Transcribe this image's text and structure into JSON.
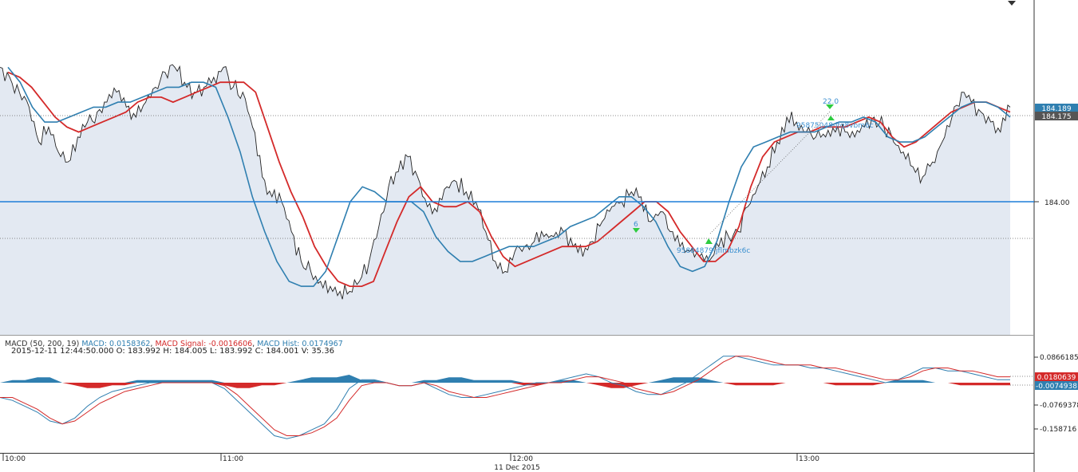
{
  "chart_data": [
    {
      "type": "line",
      "panel": "price",
      "x_labels": [
        "10:00",
        "11:00",
        "12:00",
        "13:00"
      ],
      "date_label": "11 Dec 2015",
      "y_ticks": [
        "184.00"
      ],
      "price_tags": [
        {
          "value": "184.189",
          "color": "#2f7fb0"
        },
        {
          "value": "184.175",
          "color": "#555555"
        }
      ],
      "horizontal_level": 184.0,
      "annotations": [
        {
          "text": "22.0"
        },
        {
          "text": "95875048-jfq8vbm6c"
        },
        {
          "text": "6"
        },
        {
          "text": "95884879-jflmbzk6c"
        }
      ],
      "series": [
        {
          "color": "#222222",
          "values": [
            184.27,
            184.25,
            184.22,
            184.19,
            184.12,
            184.15,
            184.1,
            184.08,
            184.13,
            184.16,
            184.18,
            184.2,
            184.22,
            184.19,
            184.17,
            184.2,
            184.23,
            184.26,
            184.27,
            184.24,
            184.22,
            184.23,
            184.25,
            184.27,
            184.23,
            184.22,
            184.15,
            184.05,
            184.01,
            184.0,
            183.94,
            183.88,
            183.86,
            183.84,
            183.83,
            183.82,
            183.82,
            183.84,
            183.88,
            183.95,
            184.03,
            184.06,
            184.09,
            184.05,
            183.99,
            183.98,
            184.03,
            184.04,
            184.02,
            184.0,
            183.94,
            183.88,
            183.86,
            183.9,
            183.91,
            183.92,
            183.93,
            183.93,
            183.94,
            183.91,
            183.89,
            183.92,
            183.96,
            183.99,
            184.0,
            184.02,
            184.01,
            183.96,
            183.98,
            183.94,
            183.91,
            183.9,
            183.89,
            183.88,
            183.91,
            183.93,
            183.94,
            183.99,
            184.03,
            184.07,
            184.12,
            184.17,
            184.16,
            184.14,
            184.13,
            184.13,
            184.14,
            184.14,
            184.13,
            184.15,
            184.17,
            184.15,
            184.12,
            184.1,
            184.07,
            184.05,
            184.08,
            184.12,
            184.17,
            184.22,
            184.2,
            184.18,
            184.16,
            184.14,
            184.19
          ]
        },
        {
          "name": "",
          "color": "#d42a2a",
          "values": [
            184.26,
            184.25,
            184.23,
            184.2,
            184.17,
            184.15,
            184.14,
            184.15,
            184.16,
            184.17,
            184.18,
            184.2,
            184.21,
            184.21,
            184.2,
            184.21,
            184.22,
            184.23,
            184.24,
            184.24,
            184.24,
            184.22,
            184.15,
            184.08,
            184.02,
            183.97,
            183.91,
            183.87,
            183.84,
            183.83,
            183.83,
            183.84,
            183.9,
            183.96,
            184.01,
            184.03,
            184.0,
            183.99,
            183.99,
            184.0,
            183.98,
            183.93,
            183.89,
            183.87,
            183.88,
            183.89,
            183.9,
            183.91,
            183.91,
            183.91,
            183.92,
            183.94,
            183.96,
            183.98,
            184.0,
            184.0,
            183.98,
            183.94,
            183.91,
            183.88,
            183.88,
            183.9,
            183.95,
            184.03,
            184.09,
            184.12,
            184.13,
            184.14,
            184.14,
            184.15,
            184.15,
            184.15,
            184.16,
            184.17,
            184.16,
            184.13,
            184.11,
            184.12,
            184.14,
            184.16,
            184.18,
            184.19,
            184.2,
            184.2,
            184.19,
            184.18
          ]
        },
        {
          "name": "",
          "color": "#2f7fb0",
          "values": [
            184.27,
            184.24,
            184.19,
            184.16,
            184.16,
            184.17,
            184.18,
            184.19,
            184.19,
            184.2,
            184.2,
            184.21,
            184.22,
            184.23,
            184.23,
            184.24,
            184.24,
            184.23,
            184.17,
            184.1,
            184.01,
            183.94,
            183.88,
            183.84,
            183.83,
            183.83,
            183.86,
            183.93,
            184.0,
            184.03,
            184.02,
            184.0,
            184.0,
            184.0,
            183.98,
            183.93,
            183.9,
            183.88,
            183.88,
            183.89,
            183.9,
            183.91,
            183.91,
            183.91,
            183.92,
            183.93,
            183.95,
            183.96,
            183.97,
            183.99,
            184.01,
            184.01,
            183.99,
            183.96,
            183.91,
            183.87,
            183.86,
            183.87,
            183.92,
            184.0,
            184.07,
            184.11,
            184.12,
            184.13,
            184.14,
            184.14,
            184.14,
            184.15,
            184.16,
            184.16,
            184.17,
            184.16,
            184.13,
            184.12,
            184.12,
            184.13,
            184.15,
            184.17,
            184.19,
            184.2,
            184.2,
            184.19,
            184.17
          ]
        }
      ]
    },
    {
      "type": "line",
      "panel": "macd",
      "legend_prefix": "MACD (50, 200, 19)",
      "legend_macd": "MACD: 0.0158362",
      "legend_signal": "MACD Signal: -0.0016606",
      "legend_hist": "MACD Hist: 0.0174967",
      "ohlc_line": "2015-12-11  12:44:50.000  O: 183.992  H: 184.005  L: 183.992  C: 184.001  V: 35.36",
      "y_ticks": [
        "0.0866185",
        "-0.0769378",
        "-0.158716"
      ],
      "tags": [
        {
          "value": "0.0180639",
          "color": "#d42a2a"
        },
        {
          "value": "-0.0074938",
          "color": "#2f7fb0"
        }
      ],
      "macd": [
        -0.05,
        -0.06,
        -0.08,
        -0.1,
        -0.13,
        -0.14,
        -0.12,
        -0.08,
        -0.05,
        -0.03,
        -0.02,
        -0.01,
        0.0,
        0.0,
        0.0,
        0.0,
        0.0,
        0.0,
        -0.02,
        -0.06,
        -0.1,
        -0.14,
        -0.18,
        -0.19,
        -0.18,
        -0.16,
        -0.14,
        -0.09,
        -0.02,
        0.01,
        0.01,
        0.0,
        -0.01,
        -0.01,
        0.0,
        -0.02,
        -0.04,
        -0.05,
        -0.05,
        -0.04,
        -0.03,
        -0.02,
        -0.01,
        0.0,
        0.0,
        0.01,
        0.02,
        0.03,
        0.02,
        0.0,
        -0.01,
        -0.03,
        -0.04,
        -0.04,
        -0.02,
        0.0,
        0.03,
        0.06,
        0.09,
        0.09,
        0.08,
        0.07,
        0.06,
        0.06,
        0.06,
        0.05,
        0.05,
        0.04,
        0.03,
        0.02,
        0.01,
        0.0,
        0.01,
        0.03,
        0.05,
        0.05,
        0.04,
        0.04,
        0.03,
        0.02,
        0.01,
        0.01
      ],
      "signal": [
        -0.05,
        -0.05,
        -0.07,
        -0.09,
        -0.12,
        -0.14,
        -0.13,
        -0.1,
        -0.07,
        -0.05,
        -0.03,
        -0.02,
        -0.01,
        0.0,
        0.0,
        0.0,
        0.0,
        0.0,
        -0.01,
        -0.04,
        -0.08,
        -0.12,
        -0.16,
        -0.18,
        -0.18,
        -0.17,
        -0.15,
        -0.12,
        -0.06,
        -0.01,
        0.0,
        0.0,
        -0.01,
        -0.01,
        0.0,
        -0.01,
        -0.03,
        -0.04,
        -0.05,
        -0.05,
        -0.04,
        -0.03,
        -0.02,
        -0.01,
        0.0,
        0.0,
        0.01,
        0.02,
        0.02,
        0.01,
        0.0,
        -0.02,
        -0.03,
        -0.04,
        -0.03,
        -0.01,
        0.01,
        0.04,
        0.07,
        0.09,
        0.09,
        0.08,
        0.07,
        0.06,
        0.06,
        0.06,
        0.05,
        0.05,
        0.04,
        0.03,
        0.02,
        0.01,
        0.01,
        0.02,
        0.04,
        0.05,
        0.05,
        0.04,
        0.04,
        0.03,
        0.02,
        0.02
      ],
      "hist": [
        0.0,
        0.01,
        0.01,
        0.02,
        0.02,
        0.0,
        -0.01,
        -0.02,
        -0.02,
        -0.01,
        -0.01,
        0.01,
        0.01,
        0.01,
        0.01,
        0.01,
        0.01,
        0.01,
        -0.01,
        -0.02,
        -0.02,
        -0.01,
        -0.01,
        0.0,
        0.01,
        0.02,
        0.02,
        0.02,
        0.03,
        0.01,
        0.01,
        0.0,
        0.0,
        0.0,
        0.01,
        0.01,
        0.02,
        0.02,
        0.01,
        0.01,
        0.01,
        0.01,
        -0.01,
        -0.01,
        0.0,
        0.01,
        0.01,
        0.0,
        -0.01,
        -0.02,
        -0.02,
        -0.01,
        0.0,
        0.01,
        0.02,
        0.02,
        0.02,
        0.01,
        0.0,
        -0.01,
        -0.01,
        -0.01,
        -0.01,
        0.0,
        0.0,
        0.0,
        0.0,
        -0.01,
        -0.01,
        -0.01,
        -0.01,
        0.0,
        0.01,
        0.01,
        0.01,
        0.0,
        0.0,
        -0.01,
        -0.01,
        -0.01,
        -0.01,
        -0.01
      ]
    }
  ]
}
